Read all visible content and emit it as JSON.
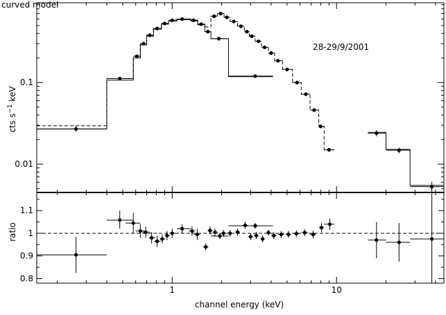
{
  "chart_data": [
    {
      "type": "scatter",
      "title": "curved model",
      "annotation": "28-29/9/2001",
      "xscale": "log",
      "yscale": "log",
      "xlim": [
        0.15,
        45
      ],
      "ylim": [
        0.0045,
        0.95
      ],
      "xlabel": "",
      "ylabel_parts": {
        "base": "cts s",
        "exp": "−1",
        "unit": " keV"
      },
      "xticks": [],
      "yticks": [
        {
          "value": 0.01,
          "label": "0.01"
        },
        {
          "value": 0.1,
          "label": "0.1"
        }
      ],
      "points": [
        {
          "x": 0.26,
          "xlo": 0.15,
          "xhi": 0.4,
          "y": 0.027,
          "yerr": 0.002
        },
        {
          "x": 0.48,
          "xlo": 0.4,
          "xhi": 0.58,
          "y": 0.112,
          "yerr": 0.004
        },
        {
          "x": 0.61,
          "xlo": 0.58,
          "xhi": 0.64,
          "y": 0.21,
          "yerr": 0.008
        },
        {
          "x": 0.67,
          "xlo": 0.64,
          "xhi": 0.7,
          "y": 0.3,
          "yerr": 0.01
        },
        {
          "x": 0.73,
          "xlo": 0.7,
          "xhi": 0.77,
          "y": 0.38,
          "yerr": 0.01
        },
        {
          "x": 0.81,
          "xlo": 0.77,
          "xhi": 0.86,
          "y": 0.46,
          "yerr": 0.01
        },
        {
          "x": 0.9,
          "xlo": 0.86,
          "xhi": 0.95,
          "y": 0.53,
          "yerr": 0.01
        },
        {
          "x": 1.0,
          "xlo": 0.95,
          "xhi": 1.07,
          "y": 0.58,
          "yerr": 0.01
        },
        {
          "x": 1.15,
          "xlo": 1.07,
          "xhi": 1.3,
          "y": 0.6,
          "yerr": 0.01
        },
        {
          "x": 1.35,
          "xlo": 1.3,
          "xhi": 1.43,
          "y": 0.58,
          "yerr": 0.01
        },
        {
          "x": 1.5,
          "xlo": 1.43,
          "xhi": 1.58,
          "y": 0.52,
          "yerr": 0.01
        },
        {
          "x": 1.65,
          "xlo": 1.58,
          "xhi": 1.72,
          "y": 0.42,
          "yerr": 0.01
        },
        {
          "x": 1.92,
          "xlo": 1.72,
          "xhi": 2.2,
          "y": 0.345,
          "yerr": 0.01
        },
        {
          "x": 3.2,
          "xlo": 2.2,
          "xhi": 4.1,
          "y": 0.12,
          "yerr": 0.004
        },
        {
          "x": 1.8,
          "xlo": 1.72,
          "xhi": 1.88,
          "y": 0.65,
          "yerr": 0.01
        },
        {
          "x": 1.97,
          "xlo": 1.88,
          "xhi": 2.07,
          "y": 0.7,
          "yerr": 0.01
        },
        {
          "x": 2.15,
          "xlo": 2.07,
          "xhi": 2.25,
          "y": 0.63,
          "yerr": 0.01
        },
        {
          "x": 2.37,
          "xlo": 2.25,
          "xhi": 2.5,
          "y": 0.56,
          "yerr": 0.01
        },
        {
          "x": 2.62,
          "xlo": 2.5,
          "xhi": 2.75,
          "y": 0.49,
          "yerr": 0.01
        },
        {
          "x": 2.85,
          "xlo": 2.75,
          "xhi": 2.95,
          "y": 0.42,
          "yerr": 0.01
        },
        {
          "x": 3.05,
          "xlo": 2.95,
          "xhi": 3.2,
          "y": 0.37,
          "yerr": 0.01
        },
        {
          "x": 3.35,
          "xlo": 3.2,
          "xhi": 3.5,
          "y": 0.32,
          "yerr": 0.01
        },
        {
          "x": 3.65,
          "xlo": 3.5,
          "xhi": 3.85,
          "y": 0.27,
          "yerr": 0.01
        },
        {
          "x": 4.0,
          "xlo": 3.85,
          "xhi": 4.2,
          "y": 0.23,
          "yerr": 0.01
        },
        {
          "x": 4.4,
          "xlo": 4.2,
          "xhi": 4.7,
          "y": 0.185,
          "yerr": 0.008
        },
        {
          "x": 5.0,
          "xlo": 4.7,
          "xhi": 5.4,
          "y": 0.145,
          "yerr": 0.006
        },
        {
          "x": 5.75,
          "xlo": 5.4,
          "xhi": 6.1,
          "y": 0.1,
          "yerr": 0.004
        },
        {
          "x": 6.5,
          "xlo": 6.1,
          "xhi": 6.9,
          "y": 0.072,
          "yerr": 0.003
        },
        {
          "x": 7.3,
          "xlo": 6.9,
          "xhi": 7.8,
          "y": 0.046,
          "yerr": 0.002
        },
        {
          "x": 8.0,
          "xlo": 7.8,
          "xhi": 8.4,
          "y": 0.029,
          "yerr": 0.0015
        },
        {
          "x": 9.0,
          "xlo": 8.4,
          "xhi": 9.7,
          "y": 0.015,
          "yerr": 0.0008
        },
        {
          "x": 17.5,
          "xlo": 15.5,
          "xhi": 20.0,
          "y": 0.024,
          "yerr": 0.002
        },
        {
          "x": 24.0,
          "xlo": 20.0,
          "xhi": 28.0,
          "y": 0.0148,
          "yerr": 0.0012
        },
        {
          "x": 38.0,
          "xlo": 28.0,
          "xhi": 45.0,
          "y": 0.0053,
          "yerr": 0.0008
        }
      ],
      "model_solid": [
        [
          0.15,
          0.027
        ],
        [
          0.4,
          0.027
        ],
        [
          0.4,
          0.107
        ],
        [
          0.58,
          0.107
        ],
        [
          0.58,
          0.2
        ],
        [
          0.64,
          0.2
        ],
        [
          0.64,
          0.29
        ],
        [
          0.7,
          0.29
        ],
        [
          0.7,
          0.37
        ],
        [
          0.77,
          0.37
        ],
        [
          0.77,
          0.45
        ],
        [
          0.86,
          0.45
        ],
        [
          0.86,
          0.52
        ],
        [
          0.95,
          0.52
        ],
        [
          0.95,
          0.57
        ],
        [
          1.07,
          0.57
        ],
        [
          1.07,
          0.59
        ],
        [
          1.3,
          0.59
        ],
        [
          1.3,
          0.57
        ],
        [
          1.43,
          0.57
        ],
        [
          1.43,
          0.51
        ],
        [
          1.58,
          0.51
        ],
        [
          1.58,
          0.42
        ],
        [
          1.72,
          0.42
        ],
        [
          1.72,
          0.345
        ],
        [
          2.2,
          0.345
        ],
        [
          2.2,
          0.118
        ],
        [
          4.1,
          0.118
        ]
      ],
      "model_dashed": [
        [
          0.15,
          0.0295
        ],
        [
          0.4,
          0.0295
        ],
        [
          0.4,
          0.112
        ],
        [
          0.58,
          0.112
        ],
        [
          0.58,
          0.21
        ],
        [
          0.64,
          0.21
        ],
        [
          0.64,
          0.3
        ],
        [
          0.7,
          0.3
        ],
        [
          0.7,
          0.38
        ],
        [
          0.77,
          0.38
        ],
        [
          0.77,
          0.46
        ],
        [
          0.86,
          0.46
        ],
        [
          0.86,
          0.53
        ],
        [
          0.95,
          0.53
        ],
        [
          0.95,
          0.58
        ],
        [
          1.07,
          0.58
        ],
        [
          1.07,
          0.6
        ],
        [
          1.3,
          0.6
        ],
        [
          1.3,
          0.58
        ],
        [
          1.43,
          0.58
        ],
        [
          1.43,
          0.52
        ],
        [
          1.58,
          0.52
        ],
        [
          1.58,
          0.48
        ],
        [
          1.72,
          0.48
        ],
        [
          1.72,
          0.65
        ],
        [
          1.88,
          0.65
        ],
        [
          1.88,
          0.7
        ],
        [
          2.07,
          0.7
        ],
        [
          2.07,
          0.63
        ],
        [
          2.25,
          0.63
        ],
        [
          2.25,
          0.56
        ],
        [
          2.5,
          0.56
        ],
        [
          2.5,
          0.49
        ],
        [
          2.75,
          0.49
        ],
        [
          2.75,
          0.42
        ],
        [
          2.95,
          0.42
        ],
        [
          2.95,
          0.37
        ],
        [
          3.2,
          0.37
        ],
        [
          3.2,
          0.32
        ],
        [
          3.5,
          0.32
        ],
        [
          3.5,
          0.27
        ],
        [
          3.85,
          0.27
        ],
        [
          3.85,
          0.23
        ],
        [
          4.2,
          0.23
        ],
        [
          4.2,
          0.185
        ],
        [
          4.7,
          0.185
        ],
        [
          4.7,
          0.145
        ],
        [
          5.4,
          0.145
        ],
        [
          5.4,
          0.1
        ],
        [
          6.1,
          0.1
        ],
        [
          6.1,
          0.072
        ],
        [
          6.9,
          0.072
        ],
        [
          6.9,
          0.046
        ],
        [
          7.8,
          0.046
        ],
        [
          7.8,
          0.029
        ],
        [
          8.4,
          0.029
        ],
        [
          8.4,
          0.015
        ],
        [
          9.7,
          0.015
        ]
      ],
      "model_high": [
        [
          15.5,
          0.0245
        ],
        [
          20.0,
          0.0245
        ],
        [
          20.0,
          0.0152
        ],
        [
          28.0,
          0.0152
        ],
        [
          28.0,
          0.0055
        ],
        [
          45.0,
          0.0055
        ]
      ]
    },
    {
      "type": "scatter",
      "title": "",
      "xscale": "log",
      "xlim": [
        0.15,
        45
      ],
      "ylim": [
        0.78,
        1.18
      ],
      "xlabel": "channel energy (keV)",
      "ylabel": "ratio",
      "reference_line": 1.0,
      "xticks": [
        {
          "value": 1,
          "label": "1"
        },
        {
          "value": 10,
          "label": "10"
        }
      ],
      "yticks": [
        {
          "value": 0.8,
          "label": "0.8"
        },
        {
          "value": 0.9,
          "label": "0.9"
        },
        {
          "value": 1.0,
          "label": "1"
        },
        {
          "value": 1.1,
          "label": "1.1"
        }
      ],
      "points": [
        {
          "x": 0.26,
          "xlo": 0.15,
          "xhi": 0.4,
          "y": 0.905,
          "ylo": 0.825,
          "yhi": 0.985
        },
        {
          "x": 0.48,
          "xlo": 0.4,
          "xhi": 0.58,
          "y": 1.058,
          "ylo": 1.02,
          "yhi": 1.1
        },
        {
          "x": 0.58,
          "xlo": 0.52,
          "xhi": 0.64,
          "y": 1.045,
          "ylo": 1.0,
          "yhi": 1.09
        },
        {
          "x": 0.64,
          "xlo": 0.6,
          "xhi": 0.68,
          "y": 1.01,
          "ylo": 0.98,
          "yhi": 1.04
        },
        {
          "x": 0.69,
          "xlo": 0.66,
          "xhi": 0.73,
          "y": 1.005,
          "ylo": 0.98,
          "yhi": 1.03
        },
        {
          "x": 0.75,
          "xlo": 0.72,
          "xhi": 0.79,
          "y": 0.98,
          "ylo": 0.955,
          "yhi": 1.005
        },
        {
          "x": 0.81,
          "xlo": 0.78,
          "xhi": 0.85,
          "y": 0.965,
          "ylo": 0.94,
          "yhi": 0.99
        },
        {
          "x": 0.87,
          "xlo": 0.84,
          "xhi": 0.91,
          "y": 0.975,
          "ylo": 0.955,
          "yhi": 0.995
        },
        {
          "x": 0.93,
          "xlo": 0.9,
          "xhi": 0.97,
          "y": 0.99,
          "ylo": 0.97,
          "yhi": 1.01
        },
        {
          "x": 1.0,
          "xlo": 0.96,
          "xhi": 1.05,
          "y": 1.0,
          "ylo": 0.98,
          "yhi": 1.02
        },
        {
          "x": 1.15,
          "xlo": 1.07,
          "xhi": 1.3,
          "y": 1.02,
          "ylo": 1.0,
          "yhi": 1.04
        },
        {
          "x": 1.32,
          "xlo": 1.26,
          "xhi": 1.38,
          "y": 1.01,
          "ylo": 0.99,
          "yhi": 1.03
        },
        {
          "x": 1.42,
          "xlo": 1.36,
          "xhi": 1.48,
          "y": 0.995,
          "ylo": 0.97,
          "yhi": 1.02
        },
        {
          "x": 1.6,
          "xlo": 1.54,
          "xhi": 1.66,
          "y": 0.94,
          "ylo": 0.925,
          "yhi": 0.955
        },
        {
          "x": 1.7,
          "xlo": 1.64,
          "xhi": 1.76,
          "y": 1.012,
          "ylo": 0.995,
          "yhi": 1.03
        },
        {
          "x": 1.82,
          "xlo": 1.76,
          "xhi": 1.88,
          "y": 1.005,
          "ylo": 0.985,
          "yhi": 1.02
        },
        {
          "x": 1.95,
          "xlo": 1.72,
          "xhi": 2.2,
          "y": 0.988,
          "ylo": 0.975,
          "yhi": 1.0
        },
        {
          "x": 2.05,
          "xlo": 1.98,
          "xhi": 2.12,
          "y": 1.0,
          "ylo": 0.985,
          "yhi": 1.015
        },
        {
          "x": 2.25,
          "xlo": 2.17,
          "xhi": 2.33,
          "y": 1.0,
          "ylo": 0.985,
          "yhi": 1.015
        },
        {
          "x": 2.5,
          "xlo": 2.42,
          "xhi": 2.58,
          "y": 1.005,
          "ylo": 0.99,
          "yhi": 1.02
        },
        {
          "x": 2.78,
          "xlo": 2.68,
          "xhi": 2.88,
          "y": 1.035,
          "ylo": 1.02,
          "yhi": 1.05
        },
        {
          "x": 3.2,
          "xlo": 2.2,
          "xhi": 4.1,
          "y": 1.033,
          "ylo": 1.02,
          "yhi": 1.046
        },
        {
          "x": 3.0,
          "xlo": 2.9,
          "xhi": 3.1,
          "y": 0.985,
          "ylo": 0.97,
          "yhi": 1.0
        },
        {
          "x": 3.25,
          "xlo": 3.15,
          "xhi": 3.35,
          "y": 0.99,
          "ylo": 0.975,
          "yhi": 1.005
        },
        {
          "x": 3.55,
          "xlo": 3.45,
          "xhi": 3.65,
          "y": 0.975,
          "ylo": 0.96,
          "yhi": 0.99
        },
        {
          "x": 3.85,
          "xlo": 3.75,
          "xhi": 3.95,
          "y": 1.003,
          "ylo": 0.99,
          "yhi": 1.016
        },
        {
          "x": 4.15,
          "xlo": 4.0,
          "xhi": 4.3,
          "y": 0.99,
          "ylo": 0.975,
          "yhi": 1.005
        },
        {
          "x": 4.6,
          "xlo": 4.4,
          "xhi": 4.8,
          "y": 0.995,
          "ylo": 0.98,
          "yhi": 1.01
        },
        {
          "x": 5.1,
          "xlo": 4.9,
          "xhi": 5.3,
          "y": 0.995,
          "ylo": 0.98,
          "yhi": 1.01
        },
        {
          "x": 5.7,
          "xlo": 5.5,
          "xhi": 5.9,
          "y": 0.998,
          "ylo": 0.983,
          "yhi": 1.013
        },
        {
          "x": 6.4,
          "xlo": 6.1,
          "xhi": 6.7,
          "y": 1.003,
          "ylo": 0.988,
          "yhi": 1.018
        },
        {
          "x": 7.2,
          "xlo": 6.9,
          "xhi": 7.5,
          "y": 0.995,
          "ylo": 0.978,
          "yhi": 1.012
        },
        {
          "x": 8.1,
          "xlo": 7.8,
          "xhi": 8.4,
          "y": 1.025,
          "ylo": 1.005,
          "yhi": 1.045
        },
        {
          "x": 9.1,
          "xlo": 8.4,
          "xhi": 9.7,
          "y": 1.04,
          "ylo": 1.015,
          "yhi": 1.065
        },
        {
          "x": 17.5,
          "xlo": 15.5,
          "xhi": 20.0,
          "y": 0.97,
          "ylo": 0.89,
          "yhi": 1.05
        },
        {
          "x": 24.0,
          "xlo": 20.0,
          "xhi": 28.0,
          "y": 0.96,
          "ylo": 0.875,
          "yhi": 1.045
        },
        {
          "x": 38.0,
          "xlo": 28.0,
          "xhi": 45.0,
          "y": 0.975,
          "ylo": 0.78,
          "yhi": 1.18
        }
      ]
    }
  ]
}
